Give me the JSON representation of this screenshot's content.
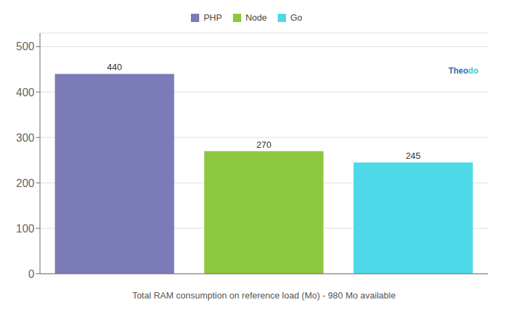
{
  "chart_data": {
    "type": "bar",
    "categories": [
      "PHP",
      "Node",
      "Go"
    ],
    "values": [
      440,
      270,
      245
    ],
    "colors": [
      "#7b7bb8",
      "#8dc63f",
      "#4dd9e8"
    ],
    "xlabel": "Total RAM consumption on reference load (Mo) - 980 Mo available",
    "ylim": [
      0,
      530
    ],
    "yticks": [
      0,
      100,
      200,
      300,
      400,
      500
    ],
    "grid": true,
    "legend": "top",
    "data_labels": true,
    "tick_labels": "y",
    "annotations": [
      {
        "text": "Theo",
        "color": "#2d6db5"
      },
      {
        "text": "do",
        "color": "#40c8c8"
      }
    ]
  }
}
